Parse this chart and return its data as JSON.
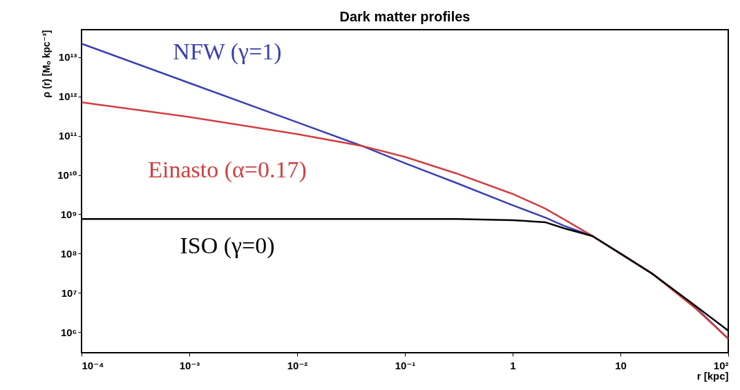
{
  "chart_data": {
    "type": "line",
    "title": "Dark matter profiles",
    "xlabel": "r [kpc]",
    "ylabel": "ρ (r) [Mₒ kpc⁻³]",
    "log": "xy",
    "grid": false,
    "marker": "none",
    "line_style": "solid",
    "x": [
      0.0001,
      0.001,
      0.01,
      0.04,
      0.1,
      0.3,
      1,
      2,
      3,
      5.5,
      10,
      20,
      50,
      100
    ],
    "xlim": [
      0.0001,
      100
    ],
    "ylim": [
      300000,
      50000000000000
    ],
    "xticks": [
      {
        "value": 0.0001,
        "label": "10⁻⁴"
      },
      {
        "value": 0.001,
        "label": "10⁻³"
      },
      {
        "value": 0.01,
        "label": "10⁻²"
      },
      {
        "value": 0.1,
        "label": "10⁻¹"
      },
      1,
      10,
      {
        "value": 100,
        "label": "10²"
      }
    ],
    "yticks": [
      {
        "value": 1000000,
        "label": "10⁶"
      },
      {
        "value": 10000000,
        "label": "10⁷"
      },
      {
        "value": 100000000,
        "label": "10⁸"
      },
      {
        "value": 1000000000,
        "label": "10⁹"
      },
      {
        "value": 10000000000,
        "label": "10¹⁰"
      },
      {
        "value": 100000000000,
        "label": "10¹¹"
      },
      {
        "value": 1000000000000,
        "label": "10¹²"
      },
      {
        "value": 10000000000000,
        "label": "10¹³"
      }
    ],
    "series": [
      {
        "name": "NFW (γ=1)",
        "color": "#3a3fb0",
        "values": [
          22000000000000.0,
          2200000000000.0,
          220000000000.0,
          55000000000.0,
          20000000000.0,
          6300000000.0,
          1700000000.0,
          830000000.0,
          510000000.0,
          280000000.0,
          100000000.0,
          30000000.0,
          4200000.0,
          680000.0
        ]
      },
      {
        "name": "Einasto (α=0.17)",
        "color": "#d04040",
        "values": [
          710000000000.0,
          300000000000.0,
          110000000000.0,
          55000000000.0,
          29000000000.0,
          11000000000.0,
          3300000000.0,
          1400000000.0,
          740000000.0,
          280000000.0,
          100000000.0,
          30000000.0,
          4000000.0,
          680000.0
        ]
      },
      {
        "name": "ISO (γ=0)",
        "color": "#000000",
        "values": [
          760000000.0,
          760000000.0,
          760000000.0,
          760000000.0,
          760000000.0,
          760000000.0,
          710000000.0,
          630000000.0,
          440000000.0,
          280000000.0,
          100000000.0,
          30000000.0,
          4600000.0,
          1100000.0
        ]
      }
    ]
  }
}
